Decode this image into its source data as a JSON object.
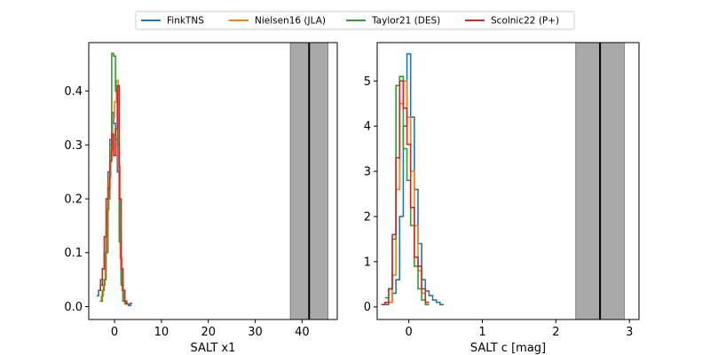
{
  "colors": {
    "FinkTNS": "#1f77b4",
    "Nielsen16 (JLA)": "#ff7f0e",
    "Taylor21 (DES)": "#2ca02c",
    "Scolnic22 (P+)": "#d62728",
    "band": "#a9a9a9",
    "vline": "#000000"
  },
  "legend": {
    "placement": "top-center",
    "entries": [
      "FinkTNS",
      "Nielsen16 (JLA)",
      "Taylor21 (DES)",
      "Scolnic22 (P+)"
    ]
  },
  "chart_data": [
    {
      "type": "step",
      "xlabel": "SALT x1",
      "ylabel": "",
      "xlim": [
        -5.5,
        47.5
      ],
      "ylim": [
        -0.024,
        0.49
      ],
      "xticks": [
        0,
        10,
        20,
        30,
        40
      ],
      "yticks": [
        0.0,
        0.1,
        0.2,
        0.3,
        0.4
      ],
      "xtick_labels": [
        "0",
        "10",
        "20",
        "30",
        "40"
      ],
      "ytick_labels": [
        "0.0",
        "0.1",
        "0.2",
        "0.3",
        "0.4"
      ],
      "vline": 41.5,
      "band": [
        37.5,
        45.5
      ],
      "series": [
        {
          "name": "FinkTNS",
          "x": [
            -3.6,
            -3.2,
            -2.8,
            -2.4,
            -2.0,
            -1.6,
            -1.2,
            -0.8,
            -0.4,
            0.0,
            0.4,
            0.8,
            1.2,
            1.6,
            2.0,
            2.4,
            2.8,
            3.2,
            3.6
          ],
          "y": [
            0.02,
            0.03,
            0.05,
            0.07,
            0.1,
            0.14,
            0.25,
            0.31,
            0.36,
            0.34,
            0.31,
            0.25,
            0.14,
            0.05,
            0.02,
            0.01,
            0.005,
            0.002,
            0.006
          ]
        },
        {
          "name": "Nielsen16 (JLA)",
          "x": [
            -3.0,
            -2.6,
            -2.2,
            -1.8,
            -1.4,
            -1.0,
            -0.6,
            -0.2,
            0.2,
            0.6,
            1.0,
            1.4,
            1.8,
            2.2,
            2.6
          ],
          "y": [
            0.01,
            0.02,
            0.04,
            0.1,
            0.18,
            0.24,
            0.29,
            0.35,
            0.38,
            0.42,
            0.26,
            0.09,
            0.03,
            0.01,
            0.005
          ]
        },
        {
          "name": "Taylor21 (DES)",
          "x": [
            -2.8,
            -2.4,
            -2.0,
            -1.6,
            -1.2,
            -0.8,
            -0.4,
            0.0,
            0.4,
            0.8,
            1.2,
            1.6,
            2.0,
            2.4
          ],
          "y": [
            0.01,
            0.03,
            0.05,
            0.1,
            0.2,
            0.3,
            0.47,
            0.465,
            0.4,
            0.3,
            0.12,
            0.04,
            0.01,
            0.005
          ]
        },
        {
          "name": "Scolnic22 (P+)",
          "x": [
            -3.2,
            -2.8,
            -2.4,
            -2.0,
            -1.6,
            -1.2,
            -0.8,
            -0.4,
            0.0,
            0.4,
            0.8,
            1.2,
            1.6,
            2.0,
            2.4,
            2.8
          ],
          "y": [
            0.03,
            0.04,
            0.07,
            0.13,
            0.2,
            0.22,
            0.27,
            0.32,
            0.28,
            0.33,
            0.41,
            0.2,
            0.07,
            0.03,
            0.01,
            0.005
          ]
        }
      ]
    },
    {
      "type": "step",
      "xlabel": "SALT c [mag]",
      "ylabel": "",
      "xlim": [
        -0.43,
        3.13
      ],
      "ylim": [
        -0.28,
        5.85
      ],
      "xticks": [
        0,
        1,
        2,
        3
      ],
      "yticks": [
        0,
        1,
        2,
        3,
        4,
        5
      ],
      "xtick_labels": [
        "0",
        "1",
        "2",
        "3"
      ],
      "ytick_labels": [
        "0",
        "1",
        "2",
        "3",
        "4",
        "5"
      ],
      "vline": 2.6,
      "band": [
        2.27,
        2.93
      ],
      "series": [
        {
          "name": "FinkTNS",
          "x": [
            -0.3,
            -0.25,
            -0.2,
            -0.15,
            -0.1,
            -0.05,
            0.0,
            0.05,
            0.1,
            0.15,
            0.2,
            0.25,
            0.3,
            0.35,
            0.4,
            0.45
          ],
          "y": [
            0.05,
            0.1,
            0.3,
            0.6,
            2.0,
            4.0,
            5.6,
            4.2,
            2.6,
            1.4,
            0.6,
            0.35,
            0.25,
            0.15,
            0.1,
            0.05
          ]
        },
        {
          "name": "Nielsen16 (JLA)",
          "x": [
            -0.25,
            -0.2,
            -0.15,
            -0.1,
            -0.05,
            0.0,
            0.05,
            0.1,
            0.15,
            0.2,
            0.25
          ],
          "y": [
            0.1,
            0.7,
            2.6,
            4.5,
            5.0,
            4.2,
            3.0,
            1.8,
            0.8,
            0.3,
            0.1
          ]
        },
        {
          "name": "Taylor21 (DES)",
          "x": [
            -0.3,
            -0.25,
            -0.2,
            -0.15,
            -0.1,
            -0.05,
            0.0,
            0.05,
            0.1,
            0.15,
            0.2,
            0.25
          ],
          "y": [
            0.2,
            0.4,
            1.5,
            4.9,
            5.1,
            3.5,
            2.8,
            1.8,
            0.9,
            0.4,
            0.15,
            0.05
          ]
        },
        {
          "name": "Scolnic22 (P+)",
          "x": [
            -0.35,
            -0.3,
            -0.25,
            -0.2,
            -0.15,
            -0.1,
            -0.05,
            0.0,
            0.05,
            0.1,
            0.15,
            0.2,
            0.25
          ],
          "y": [
            0.05,
            0.1,
            0.4,
            1.6,
            3.3,
            5.0,
            4.4,
            3.6,
            2.2,
            1.1,
            0.9,
            0.4,
            0.1
          ]
        }
      ]
    }
  ]
}
